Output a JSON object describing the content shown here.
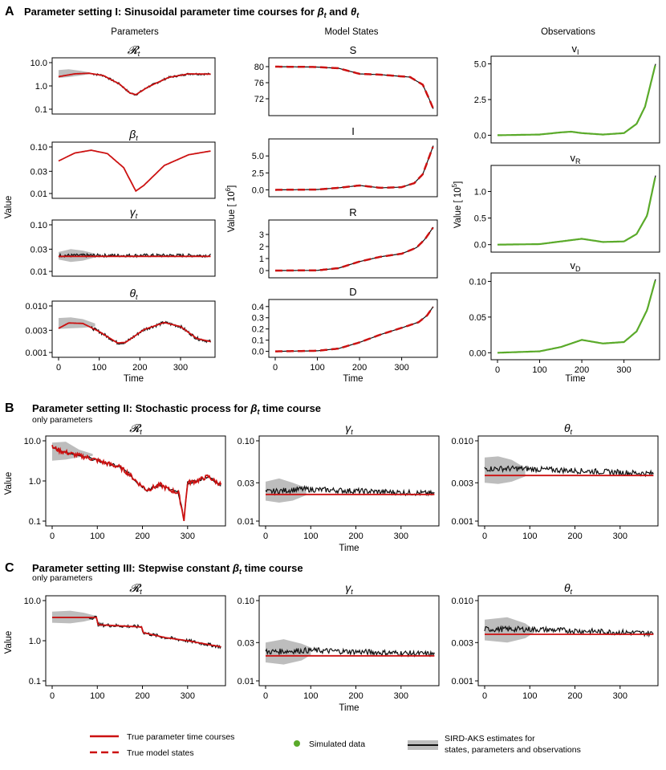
{
  "colors": {
    "true_param": "#cc1111",
    "true_state": "#cc1111",
    "estimate": "#111111",
    "band": "#bdbdbd",
    "data": "#5aaa2a"
  },
  "panels": {
    "A": {
      "letter": "A",
      "title_prefix": "Parameter setting I: Sinusoidal parameter time courses for ",
      "title_sym1": "β",
      "title_sub1": "t",
      "title_mid": " and ",
      "title_sym2": "θ",
      "title_sub2": "t"
    },
    "B": {
      "letter": "B",
      "title_prefix": "Parameter setting II: Stochastic process for ",
      "title_sym": "β",
      "title_sub": "t",
      "title_suffix": " time course",
      "subtitle": "only parameters"
    },
    "C": {
      "letter": "C",
      "title_prefix": "Parameter setting III: Stepwise constant ",
      "title_sym": "β",
      "title_sub": "t",
      "title_suffix": " time course",
      "subtitle": "only parameters"
    }
  },
  "columns": {
    "params": "Parameters",
    "states": "Model States",
    "obs": "Observations"
  },
  "axes": {
    "value": "Value",
    "time": "Time",
    "states_ylabel": "Value [ 10",
    "states_ylabel_exp": "6",
    "states_ylabel_end": "]",
    "obs_ylabel": "Value [ 10",
    "obs_ylabel_exp": "5",
    "obs_ylabel_end": "]"
  },
  "titles": {
    "R": "𝓡",
    "R_sub": "t",
    "beta": "β",
    "beta_sub": "t",
    "gamma": "γ",
    "gamma_sub": "t",
    "theta": "θ",
    "theta_sub": "t",
    "S": "S",
    "I": "I",
    "Rs": "R",
    "D": "D",
    "vI": "v",
    "vI_sub": "I",
    "vR": "v",
    "vR_sub": "R",
    "vD": "v",
    "vD_sub": "D"
  },
  "ticks": {
    "x": [
      "0",
      "100",
      "200",
      "300"
    ],
    "R": [
      "0.1",
      "1.0",
      "10.0"
    ],
    "beta": [
      "0.01",
      "0.03",
      "0.10"
    ],
    "gamma": [
      "0.01",
      "0.03",
      "0.10"
    ],
    "theta": [
      "0.001",
      "0.003",
      "0.010"
    ],
    "S": [
      "72",
      "76",
      "80"
    ],
    "I": [
      "0.0",
      "2.5",
      "5.0"
    ],
    "Rs": [
      "0",
      "1",
      "2",
      "3"
    ],
    "D": [
      "0.0",
      "0.1",
      "0.2",
      "0.3",
      "0.4"
    ],
    "vI": [
      "0.0",
      "2.5",
      "5.0"
    ],
    "vR": [
      "0.0",
      "0.5",
      "1.0"
    ],
    "vD": [
      "0.00",
      "0.05",
      "0.10"
    ]
  },
  "legend": {
    "true_param": "True parameter time courses",
    "true_state": "True model states",
    "sim": "Simulated data",
    "est1": "SIRD-AKS estimates for",
    "est2": "states, parameters and observations"
  },
  "chart_data": [
    {
      "id": "A-R",
      "type": "line",
      "scale": "log",
      "ylim": [
        0.1,
        10
      ],
      "xlim": [
        0,
        375
      ],
      "title": "Rt",
      "curve": [
        [
          0,
          2.5
        ],
        [
          40,
          3.3
        ],
        [
          75,
          3.5
        ],
        [
          110,
          2.8
        ],
        [
          150,
          1.2
        ],
        [
          175,
          0.5
        ],
        [
          190,
          0.42
        ],
        [
          220,
          0.9
        ],
        [
          270,
          2.3
        ],
        [
          320,
          3.3
        ],
        [
          375,
          3.2
        ]
      ],
      "band": [
        [
          0,
          4.8,
          2.2
        ],
        [
          25,
          5.2,
          2.4
        ],
        [
          55,
          4.4,
          2.8
        ],
        [
          80,
          3.7,
          3.3
        ]
      ]
    },
    {
      "id": "A-beta",
      "type": "line",
      "scale": "log",
      "ylim": [
        0.01,
        0.1
      ],
      "title": "βt",
      "curve": [
        [
          0,
          0.05
        ],
        [
          40,
          0.074
        ],
        [
          80,
          0.085
        ],
        [
          120,
          0.072
        ],
        [
          160,
          0.036
        ],
        [
          190,
          0.0113
        ],
        [
          210,
          0.015
        ],
        [
          260,
          0.04
        ],
        [
          320,
          0.068
        ],
        [
          375,
          0.082
        ]
      ]
    },
    {
      "id": "A-gamma",
      "type": "line",
      "scale": "log",
      "ylim": [
        0.01,
        0.1
      ],
      "title": "γt",
      "curve": [
        [
          0,
          0.021
        ],
        [
          375,
          0.021
        ]
      ],
      "est": [
        [
          0,
          0.022
        ],
        [
          375,
          0.022
        ]
      ],
      "band": [
        [
          0,
          0.026,
          0.018
        ],
        [
          30,
          0.03,
          0.016
        ],
        [
          60,
          0.028,
          0.017
        ],
        [
          90,
          0.024,
          0.02
        ]
      ]
    },
    {
      "id": "A-theta",
      "type": "line",
      "scale": "log",
      "ylim": [
        0.001,
        0.01
      ],
      "title": "θt",
      "curve": [
        [
          0,
          0.0033
        ],
        [
          25,
          0.0043
        ],
        [
          60,
          0.0042
        ],
        [
          100,
          0.0028
        ],
        [
          145,
          0.0016
        ],
        [
          165,
          0.00165
        ],
        [
          210,
          0.0031
        ],
        [
          260,
          0.0044
        ],
        [
          300,
          0.0036
        ],
        [
          340,
          0.002
        ],
        [
          375,
          0.0017
        ]
      ],
      "band": [
        [
          0,
          0.0055,
          0.0032
        ],
        [
          30,
          0.0057,
          0.0033
        ],
        [
          60,
          0.0052,
          0.0034
        ],
        [
          90,
          0.0042,
          0.0036
        ]
      ]
    },
    {
      "id": "A-S",
      "type": "line",
      "ylim": [
        69,
        81
      ],
      "title": "S",
      "curve": [
        [
          0,
          80
        ],
        [
          100,
          79.9
        ],
        [
          150,
          79.6
        ],
        [
          200,
          78.2
        ],
        [
          250,
          78
        ],
        [
          320,
          77.4
        ],
        [
          350,
          75.5
        ],
        [
          365,
          72
        ],
        [
          375,
          69.5
        ]
      ]
    },
    {
      "id": "A-I",
      "type": "line",
      "ylim": [
        -0.3,
        6.8
      ],
      "title": "I",
      "curve": [
        [
          0,
          0
        ],
        [
          100,
          0.05
        ],
        [
          150,
          0.3
        ],
        [
          200,
          0.65
        ],
        [
          250,
          0.3
        ],
        [
          300,
          0.4
        ],
        [
          330,
          1.0
        ],
        [
          350,
          2.3
        ],
        [
          375,
          6.5
        ]
      ]
    },
    {
      "id": "A-Rs",
      "type": "line",
      "ylim": [
        -0.2,
        3.8
      ],
      "title": "R",
      "curve": [
        [
          0,
          0
        ],
        [
          100,
          0.02
        ],
        [
          150,
          0.2
        ],
        [
          200,
          0.75
        ],
        [
          250,
          1.15
        ],
        [
          300,
          1.4
        ],
        [
          335,
          1.9
        ],
        [
          355,
          2.6
        ],
        [
          375,
          3.6
        ]
      ]
    },
    {
      "id": "A-D",
      "type": "line",
      "ylim": [
        -0.01,
        0.42
      ],
      "title": "D",
      "curve": [
        [
          0,
          0
        ],
        [
          100,
          0.005
        ],
        [
          150,
          0.025
        ],
        [
          200,
          0.08
        ],
        [
          250,
          0.15
        ],
        [
          300,
          0.21
        ],
        [
          340,
          0.26
        ],
        [
          360,
          0.32
        ],
        [
          375,
          0.4
        ]
      ]
    },
    {
      "id": "A-vI",
      "type": "line",
      "ylim": [
        -0.2,
        5.2
      ],
      "title": "vI",
      "curve": [
        [
          0,
          0
        ],
        [
          100,
          0.05
        ],
        [
          150,
          0.2
        ],
        [
          175,
          0.25
        ],
        [
          200,
          0.15
        ],
        [
          250,
          0.05
        ],
        [
          300,
          0.15
        ],
        [
          330,
          0.8
        ],
        [
          350,
          2.0
        ],
        [
          375,
          5.0
        ]
      ]
    },
    {
      "id": "A-vR",
      "type": "line",
      "ylim": [
        -0.05,
        1.4
      ],
      "title": "vR",
      "curve": [
        [
          0,
          0
        ],
        [
          100,
          0.01
        ],
        [
          150,
          0.06
        ],
        [
          200,
          0.11
        ],
        [
          250,
          0.05
        ],
        [
          300,
          0.06
        ],
        [
          330,
          0.2
        ],
        [
          355,
          0.55
        ],
        [
          375,
          1.3
        ]
      ]
    },
    {
      "id": "A-vD",
      "type": "line",
      "ylim": [
        -0.003,
        0.105
      ],
      "title": "vD",
      "curve": [
        [
          0,
          0
        ],
        [
          100,
          0.002
        ],
        [
          150,
          0.008
        ],
        [
          200,
          0.018
        ],
        [
          250,
          0.013
        ],
        [
          300,
          0.015
        ],
        [
          330,
          0.03
        ],
        [
          355,
          0.06
        ],
        [
          375,
          0.103
        ]
      ]
    },
    {
      "id": "B-R",
      "type": "line",
      "scale": "log",
      "ylim": [
        0.1,
        10
      ],
      "title": "Rt",
      "curve": [
        [
          0,
          7
        ],
        [
          20,
          5.5
        ],
        [
          50,
          4.5
        ],
        [
          80,
          3.8
        ],
        [
          110,
          3.0
        ],
        [
          150,
          2.2
        ],
        [
          170,
          1.5
        ],
        [
          190,
          0.9
        ],
        [
          210,
          0.6
        ],
        [
          240,
          0.8
        ],
        [
          260,
          0.6
        ],
        [
          280,
          0.5
        ],
        [
          292,
          0.11
        ],
        [
          300,
          0.9
        ],
        [
          320,
          1.0
        ],
        [
          345,
          1.3
        ],
        [
          360,
          1.0
        ],
        [
          375,
          0.8
        ]
      ],
      "band": [
        [
          0,
          9,
          3.2
        ],
        [
          30,
          9.5,
          3.4
        ],
        [
          60,
          6,
          3.9
        ],
        [
          90,
          4.7,
          4.2
        ]
      ]
    },
    {
      "id": "B-gamma",
      "type": "line",
      "scale": "log",
      "ylim": [
        0.01,
        0.1
      ],
      "title": "γt",
      "curve": [
        [
          0,
          0.0215
        ],
        [
          375,
          0.0215
        ]
      ],
      "est": [
        [
          0,
          0.023
        ],
        [
          80,
          0.025
        ],
        [
          375,
          0.022
        ]
      ],
      "band": [
        [
          0,
          0.031,
          0.018
        ],
        [
          30,
          0.034,
          0.017
        ],
        [
          60,
          0.03,
          0.018
        ],
        [
          90,
          0.026,
          0.021
        ]
      ]
    },
    {
      "id": "B-theta",
      "type": "line",
      "scale": "log",
      "ylim": [
        0.001,
        0.01
      ],
      "title": "θt",
      "curve": [
        [
          0,
          0.0037
        ],
        [
          375,
          0.0037
        ]
      ],
      "est": [
        [
          0,
          0.0045
        ],
        [
          80,
          0.0045
        ],
        [
          375,
          0.0039
        ]
      ],
      "band": [
        [
          0,
          0.0062,
          0.003
        ],
        [
          30,
          0.0064,
          0.0029
        ],
        [
          60,
          0.0058,
          0.0031
        ],
        [
          90,
          0.0046,
          0.0036
        ]
      ]
    },
    {
      "id": "C-R",
      "type": "line",
      "scale": "log",
      "ylim": [
        0.1,
        10
      ],
      "title": "Rt",
      "curve": [
        [
          0,
          3.8
        ],
        [
          99,
          3.8
        ],
        [
          101,
          2.5
        ],
        [
          199,
          2.2
        ],
        [
          201,
          1.6
        ],
        [
          250,
          1.2
        ],
        [
          300,
          1.0
        ],
        [
          375,
          0.7
        ]
      ],
      "band": [
        [
          0,
          5.3,
          2.8
        ],
        [
          40,
          5.6,
          2.7
        ],
        [
          70,
          5.0,
          3.0
        ],
        [
          95,
          4.2,
          3.5
        ]
      ]
    },
    {
      "id": "C-gamma",
      "type": "line",
      "scale": "log",
      "ylim": [
        0.01,
        0.1
      ],
      "title": "γt",
      "curve": [
        [
          0,
          0.0205
        ],
        [
          375,
          0.0205
        ]
      ],
      "est": [
        [
          0,
          0.023
        ],
        [
          100,
          0.024
        ],
        [
          375,
          0.0215
        ]
      ],
      "band": [
        [
          0,
          0.03,
          0.017
        ],
        [
          40,
          0.033,
          0.016
        ],
        [
          80,
          0.029,
          0.018
        ],
        [
          100,
          0.026,
          0.021
        ]
      ]
    },
    {
      "id": "C-theta",
      "type": "line",
      "scale": "log",
      "ylim": [
        0.001,
        0.01
      ],
      "title": "θt",
      "curve": [
        [
          0,
          0.0038
        ],
        [
          375,
          0.0038
        ]
      ],
      "est": [
        [
          0,
          0.0044
        ],
        [
          100,
          0.0044
        ],
        [
          375,
          0.0039
        ]
      ],
      "band": [
        [
          0,
          0.0058,
          0.0032
        ],
        [
          50,
          0.0062,
          0.003
        ],
        [
          90,
          0.0052,
          0.0034
        ],
        [
          110,
          0.0043,
          0.004
        ]
      ]
    }
  ]
}
